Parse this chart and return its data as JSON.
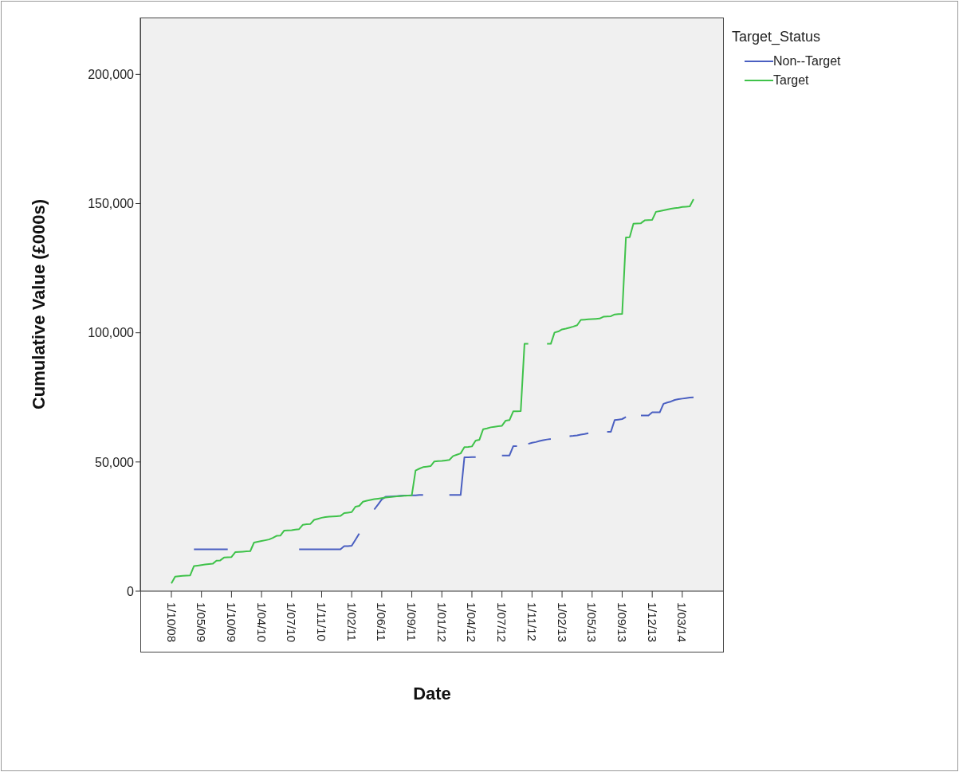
{
  "chart_data": {
    "type": "line",
    "xlabel": "Date",
    "ylabel": "Cumulative Value (£000s)",
    "legend_title": "Target_Status",
    "legend": "top right",
    "grid": false,
    "marker": "none",
    "ylim": [
      0,
      222000
    ],
    "yticks": [
      0,
      {
        "value": 50000,
        "label": "50,000"
      },
      {
        "value": 100000,
        "label": "100,000"
      },
      {
        "value": 150000,
        "label": "150,000"
      },
      {
        "value": 200000,
        "label": "200,000"
      }
    ],
    "categories": [
      "1/10/08",
      null,
      null,
      null,
      null,
      null,
      null,
      null,
      "1/05/09",
      null,
      null,
      null,
      null,
      null,
      null,
      null,
      "1/10/09",
      null,
      null,
      null,
      null,
      null,
      null,
      null,
      "1/04/10",
      null,
      null,
      null,
      null,
      null,
      null,
      null,
      "1/07/10",
      null,
      null,
      null,
      null,
      null,
      null,
      null,
      "1/11/10",
      null,
      null,
      null,
      null,
      null,
      null,
      null,
      "1/02/11",
      null,
      null,
      null,
      null,
      null,
      null,
      null,
      "1/06/11",
      null,
      null,
      null,
      null,
      null,
      null,
      null,
      "1/09/11",
      null,
      null,
      null,
      null,
      null,
      null,
      null,
      "1/01/12",
      null,
      null,
      null,
      null,
      null,
      null,
      null,
      "1/04/12",
      null,
      null,
      null,
      null,
      null,
      null,
      null,
      "1/07/12",
      null,
      null,
      null,
      null,
      null,
      null,
      null,
      "1/11/12",
      null,
      null,
      null,
      null,
      null,
      null,
      null,
      "1/02/13",
      null,
      null,
      null,
      null,
      null,
      null,
      null,
      "1/05/13",
      null,
      null,
      null,
      null,
      null,
      null,
      null,
      "1/09/13",
      null,
      null,
      null,
      null,
      null,
      null,
      null,
      "1/12/13",
      null,
      null,
      null,
      null,
      null,
      null,
      null,
      "1/03/14",
      null,
      null,
      null
    ],
    "series": [
      {
        "name": "Non--Target",
        "color": "#4a5fc1",
        "values": [
          null,
          null,
          null,
          null,
          null,
          null,
          16200,
          16200,
          16200,
          16200,
          16200,
          16200,
          16200,
          16200,
          16200,
          16200,
          null,
          null,
          null,
          null,
          null,
          null,
          null,
          null,
          null,
          null,
          null,
          null,
          null,
          null,
          null,
          null,
          null,
          null,
          16200,
          16200,
          16200,
          16200,
          16200,
          16200,
          16200,
          16200,
          16200,
          16200,
          16200,
          16200,
          17400,
          17400,
          17600,
          19900,
          22300,
          null,
          null,
          null,
          31600,
          33500,
          35500,
          36500,
          36600,
          36700,
          36800,
          36900,
          37000,
          37000,
          37100,
          37100,
          37200,
          37200,
          null,
          null,
          null,
          null,
          null,
          null,
          37200,
          37200,
          37200,
          37200,
          51800,
          51800,
          51900,
          51900,
          null,
          null,
          null,
          null,
          null,
          null,
          52500,
          52500,
          52500,
          56100,
          56100,
          null,
          null,
          57000,
          57400,
          57700,
          58100,
          58400,
          58700,
          58900,
          null,
          null,
          null,
          null,
          60000,
          60100,
          60300,
          60600,
          60800,
          61100,
          null,
          null,
          null,
          null,
          61700,
          61700,
          66200,
          66400,
          66600,
          67400,
          null,
          null,
          null,
          68000,
          68000,
          68000,
          69200,
          69200,
          69200,
          72500,
          73000,
          73400,
          74000,
          74300,
          74500,
          74700,
          74900,
          75000
        ]
      },
      {
        "name": "Target",
        "color": "#3fc24a",
        "values": [
          3000,
          5600,
          5800,
          5900,
          6000,
          6100,
          9700,
          9900,
          10100,
          10300,
          10500,
          10600,
          11800,
          11900,
          13000,
          13100,
          13200,
          15100,
          15200,
          15300,
          15400,
          15500,
          18800,
          19100,
          19400,
          19700,
          20000,
          20600,
          21400,
          21500,
          23400,
          23500,
          23600,
          23800,
          24000,
          25700,
          25900,
          26000,
          27600,
          28000,
          28400,
          28700,
          28800,
          28900,
          29000,
          29100,
          30200,
          30400,
          30600,
          32700,
          33000,
          34600,
          35000,
          35300,
          35600,
          35800,
          36000,
          36200,
          36400,
          36500,
          36700,
          36800,
          36900,
          37000,
          37100,
          46700,
          47400,
          48000,
          48200,
          48400,
          50200,
          50300,
          50400,
          50600,
          50800,
          52300,
          52800,
          53300,
          55700,
          55800,
          56000,
          58300,
          58600,
          62700,
          63000,
          63400,
          63600,
          63800,
          64000,
          66000,
          66200,
          69600,
          69600,
          69700,
          95700,
          95700,
          null,
          null,
          null,
          null,
          95700,
          95700,
          100100,
          100500,
          101300,
          101600,
          102000,
          102400,
          102900,
          105000,
          105100,
          105200,
          105300,
          105400,
          105500,
          106200,
          106300,
          106400,
          107100,
          107200,
          107300,
          136900,
          137000,
          142200,
          142300,
          142400,
          143500,
          143600,
          143700,
          146800,
          147100,
          147400,
          147700,
          148000,
          148200,
          148400,
          148700,
          148800,
          148900,
          151700
        ]
      }
    ]
  }
}
